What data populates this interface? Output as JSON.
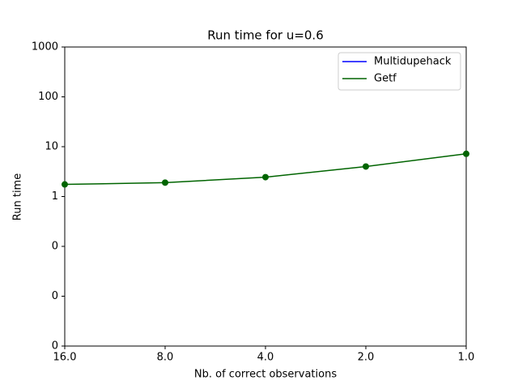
{
  "chart_data": {
    "type": "line",
    "title": "Run time for u=0.6",
    "x_label": "Nb. of correct observations",
    "y_label": "Run time",
    "categories": [
      "16.0",
      "8.0",
      "4.0",
      "2.0",
      "1.0"
    ],
    "series": [
      {
        "name": "Multidupehack",
        "color": "#0000ff",
        "values": [
          null,
          null,
          null,
          null,
          null
        ]
      },
      {
        "name": "Getf",
        "color": "#006400",
        "values": [
          1.75,
          1.9,
          2.45,
          4.0,
          7.2
        ]
      }
    ],
    "y_scale": "log",
    "ylim": [
      0.001,
      1000
    ],
    "yticks": [
      {
        "value": 0.001,
        "label": "0"
      },
      {
        "value": 0.01,
        "label": "0"
      },
      {
        "value": 0.1,
        "label": "0"
      },
      1,
      10,
      100,
      1000
    ],
    "legend": "upper right",
    "markers": true
  }
}
